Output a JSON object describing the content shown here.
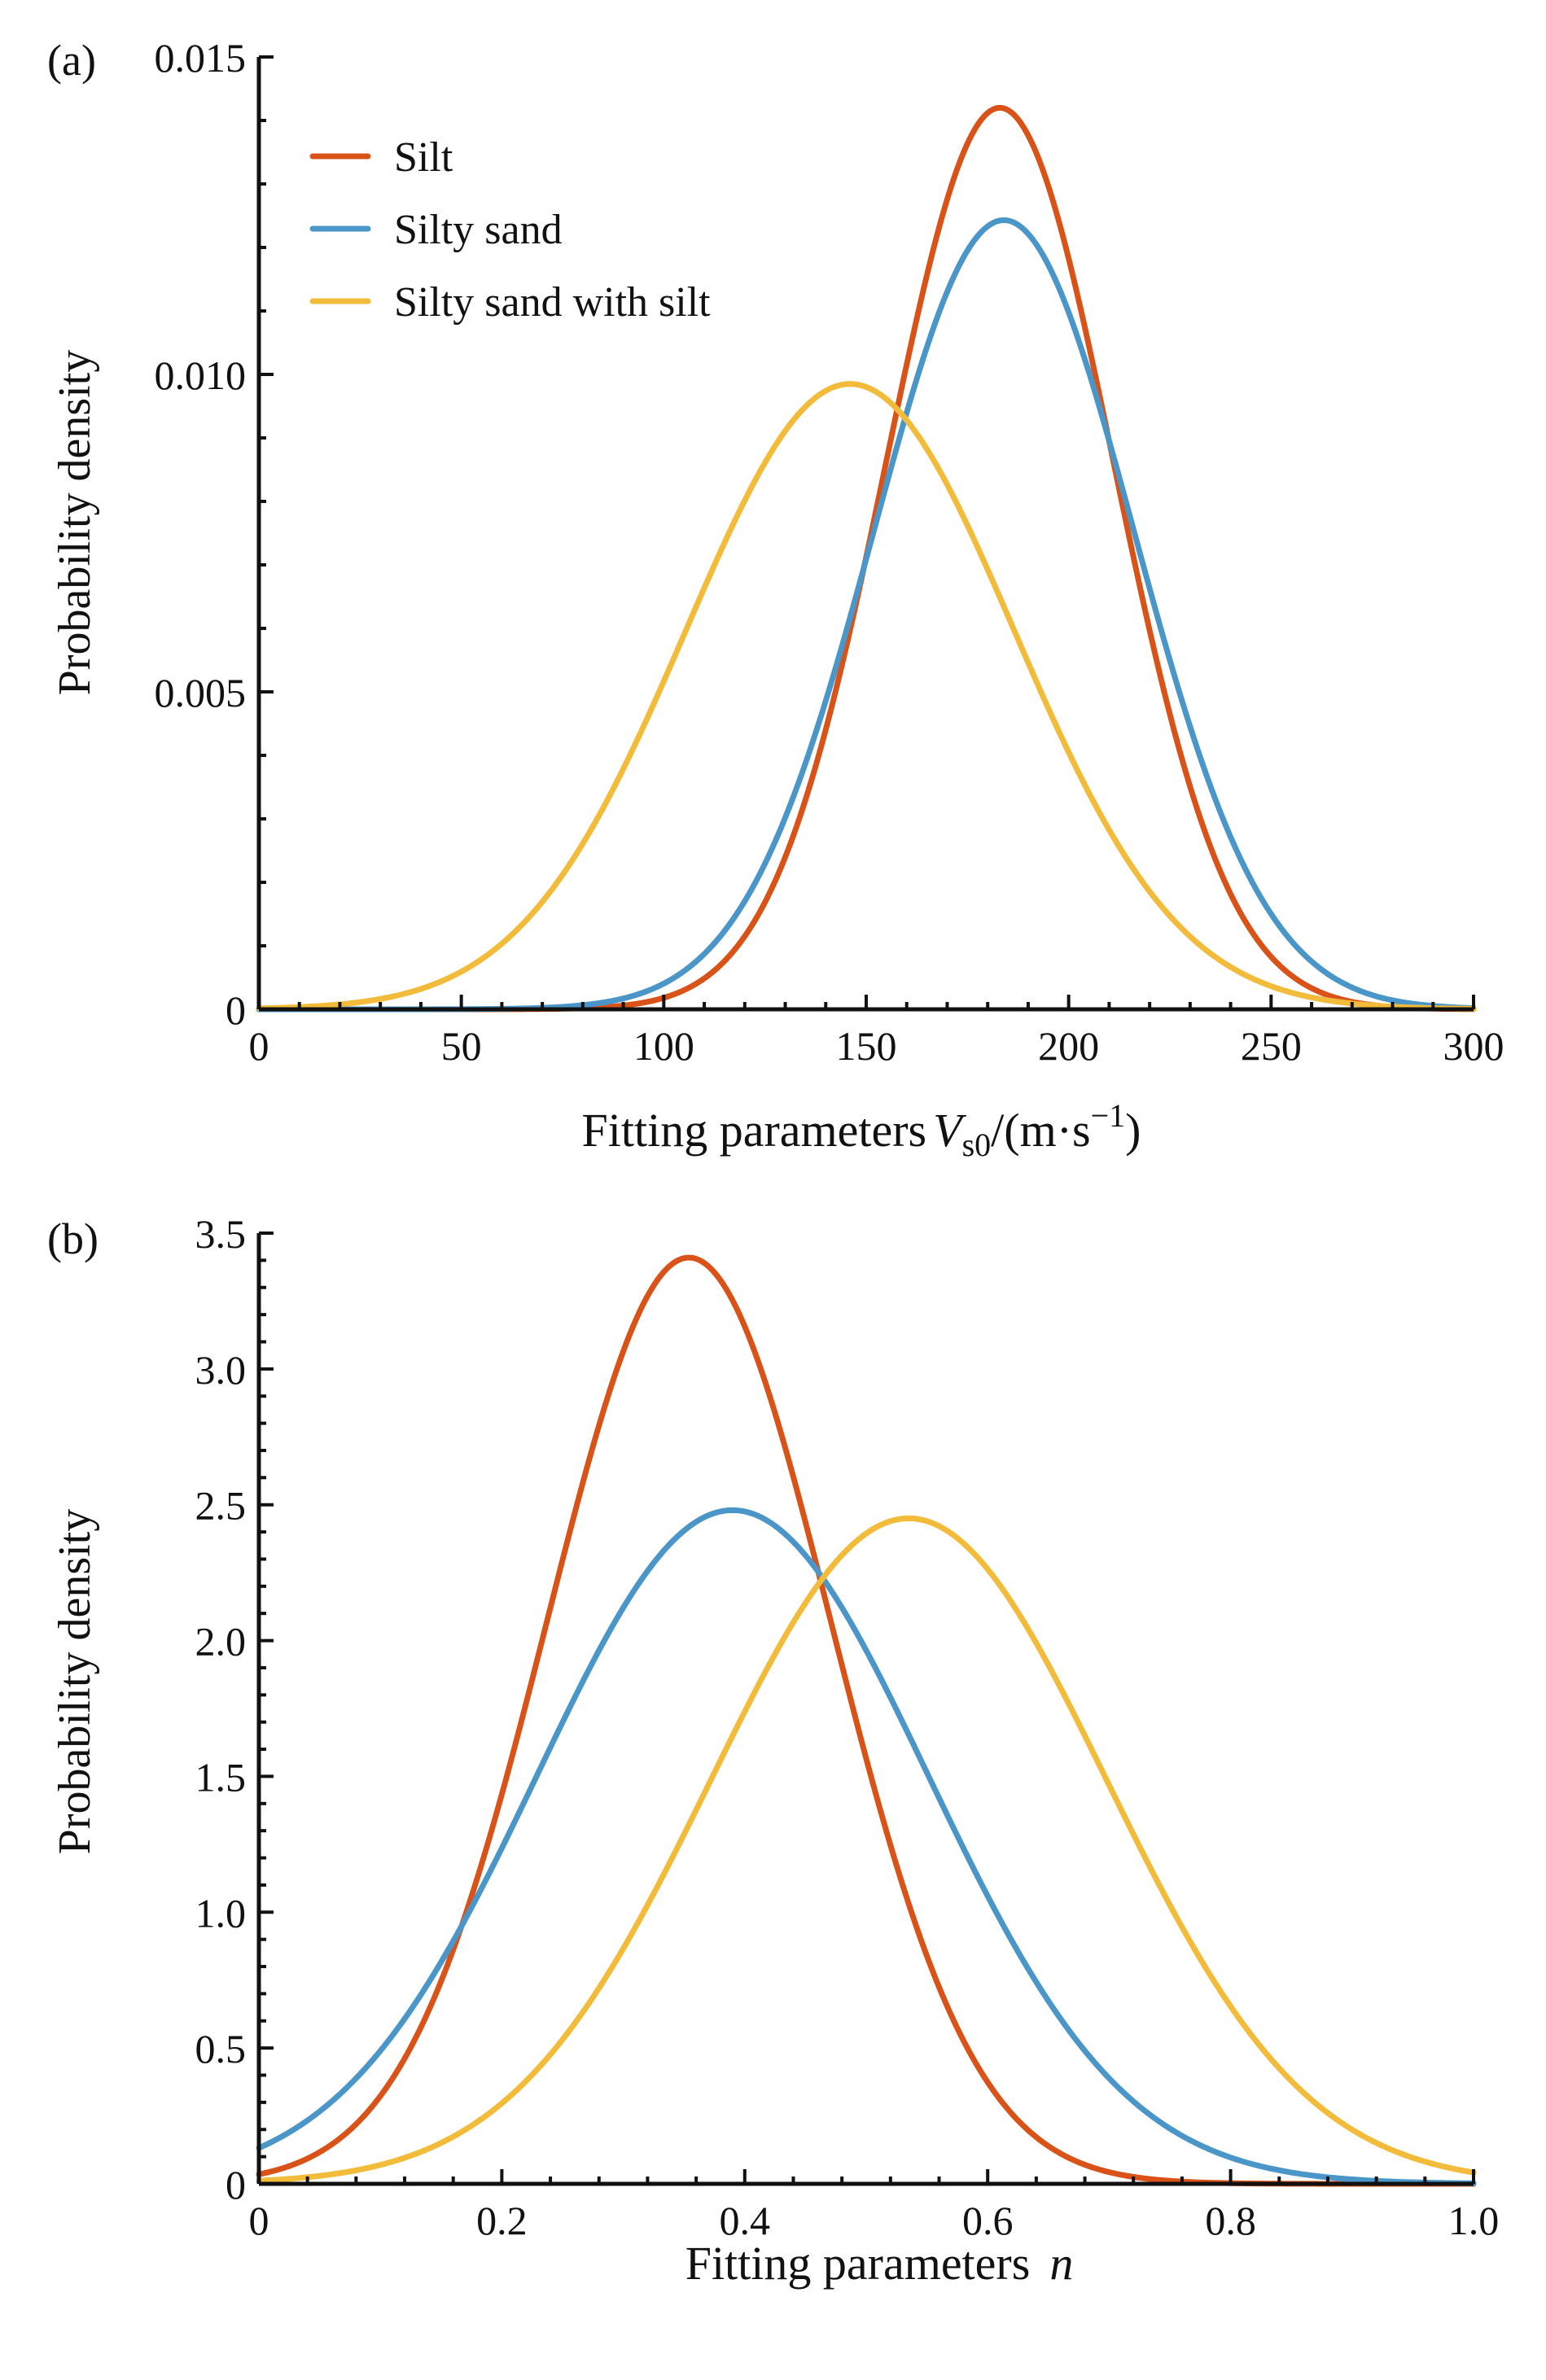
{
  "colors": {
    "silt": "#D95319",
    "silty_sand": "#4A96C8",
    "silty_sand_with_silt": "#F2BB3A"
  },
  "legend": {
    "silt": "Silt",
    "silty_sand": "Silty sand",
    "silty_sand_with_silt": "Silty sand with silt"
  },
  "chart_data": [
    {
      "panel_label": "(a)",
      "type": "line",
      "title": "",
      "xlabel": {
        "prefix": "Fitting parameters",
        "var": "V",
        "sub": "s0",
        "unit_open": "/(m·s",
        "sup": "−1",
        "unit_close": ")"
      },
      "ylabel": "Probability density",
      "xlim": [
        0,
        300
      ],
      "ylim": [
        0,
        0.015
      ],
      "xticks": [
        0,
        50,
        100,
        150,
        200,
        250,
        300
      ],
      "xtick_labels": [
        "0",
        "50",
        "100",
        "150",
        "200",
        "250",
        "300"
      ],
      "yticks": [
        0,
        0.005,
        0.01,
        0.015
      ],
      "ytick_labels": [
        "0",
        "0.005",
        "0.010",
        "0.015"
      ],
      "legend_position": "top-left",
      "grid": false,
      "series": [
        {
          "key": "silt",
          "name": "Silt",
          "distribution": "normal",
          "mean": 183,
          "std": 28.1,
          "peak": 0.0142
        },
        {
          "key": "silty_sand",
          "name": "Silty sand",
          "distribution": "normal",
          "mean": 184,
          "std": 32.1,
          "peak": 0.01243
        },
        {
          "key": "silty_sand_with_silt",
          "name": "Silty sand with silt",
          "distribution": "normal",
          "mean": 146,
          "std": 40.5,
          "peak": 0.00985
        }
      ]
    },
    {
      "panel_label": "(b)",
      "type": "line",
      "title": "",
      "xlabel": {
        "prefix": "Fitting parameters",
        "var": "n"
      },
      "ylabel": "Probability density",
      "xlim": [
        0,
        1.0
      ],
      "ylim": [
        0,
        3.5
      ],
      "xticks": [
        0,
        0.2,
        0.4,
        0.6,
        0.8,
        1.0
      ],
      "xtick_labels": [
        "0",
        "0.2",
        "0.4",
        "0.6",
        "0.8",
        "1.0"
      ],
      "yticks": [
        0,
        0.5,
        1.0,
        1.5,
        2.0,
        2.5,
        3.0,
        3.5
      ],
      "ytick_labels": [
        "0",
        "0.5",
        "1.0",
        "1.5",
        "2.0",
        "2.5",
        "3.0",
        "3.5"
      ],
      "grid": false,
      "series": [
        {
          "key": "silt",
          "name": "Silt",
          "distribution": "normal",
          "mean": 0.354,
          "std": 0.117,
          "peak": 3.41
        },
        {
          "key": "silty_sand",
          "name": "Silty sand",
          "distribution": "normal",
          "mean": 0.39,
          "std": 0.161,
          "peak": 2.48
        },
        {
          "key": "silty_sand_with_silt",
          "name": "Silty sand with silt",
          "distribution": "normal",
          "mean": 0.535,
          "std": 0.163,
          "peak": 2.45
        }
      ]
    }
  ]
}
